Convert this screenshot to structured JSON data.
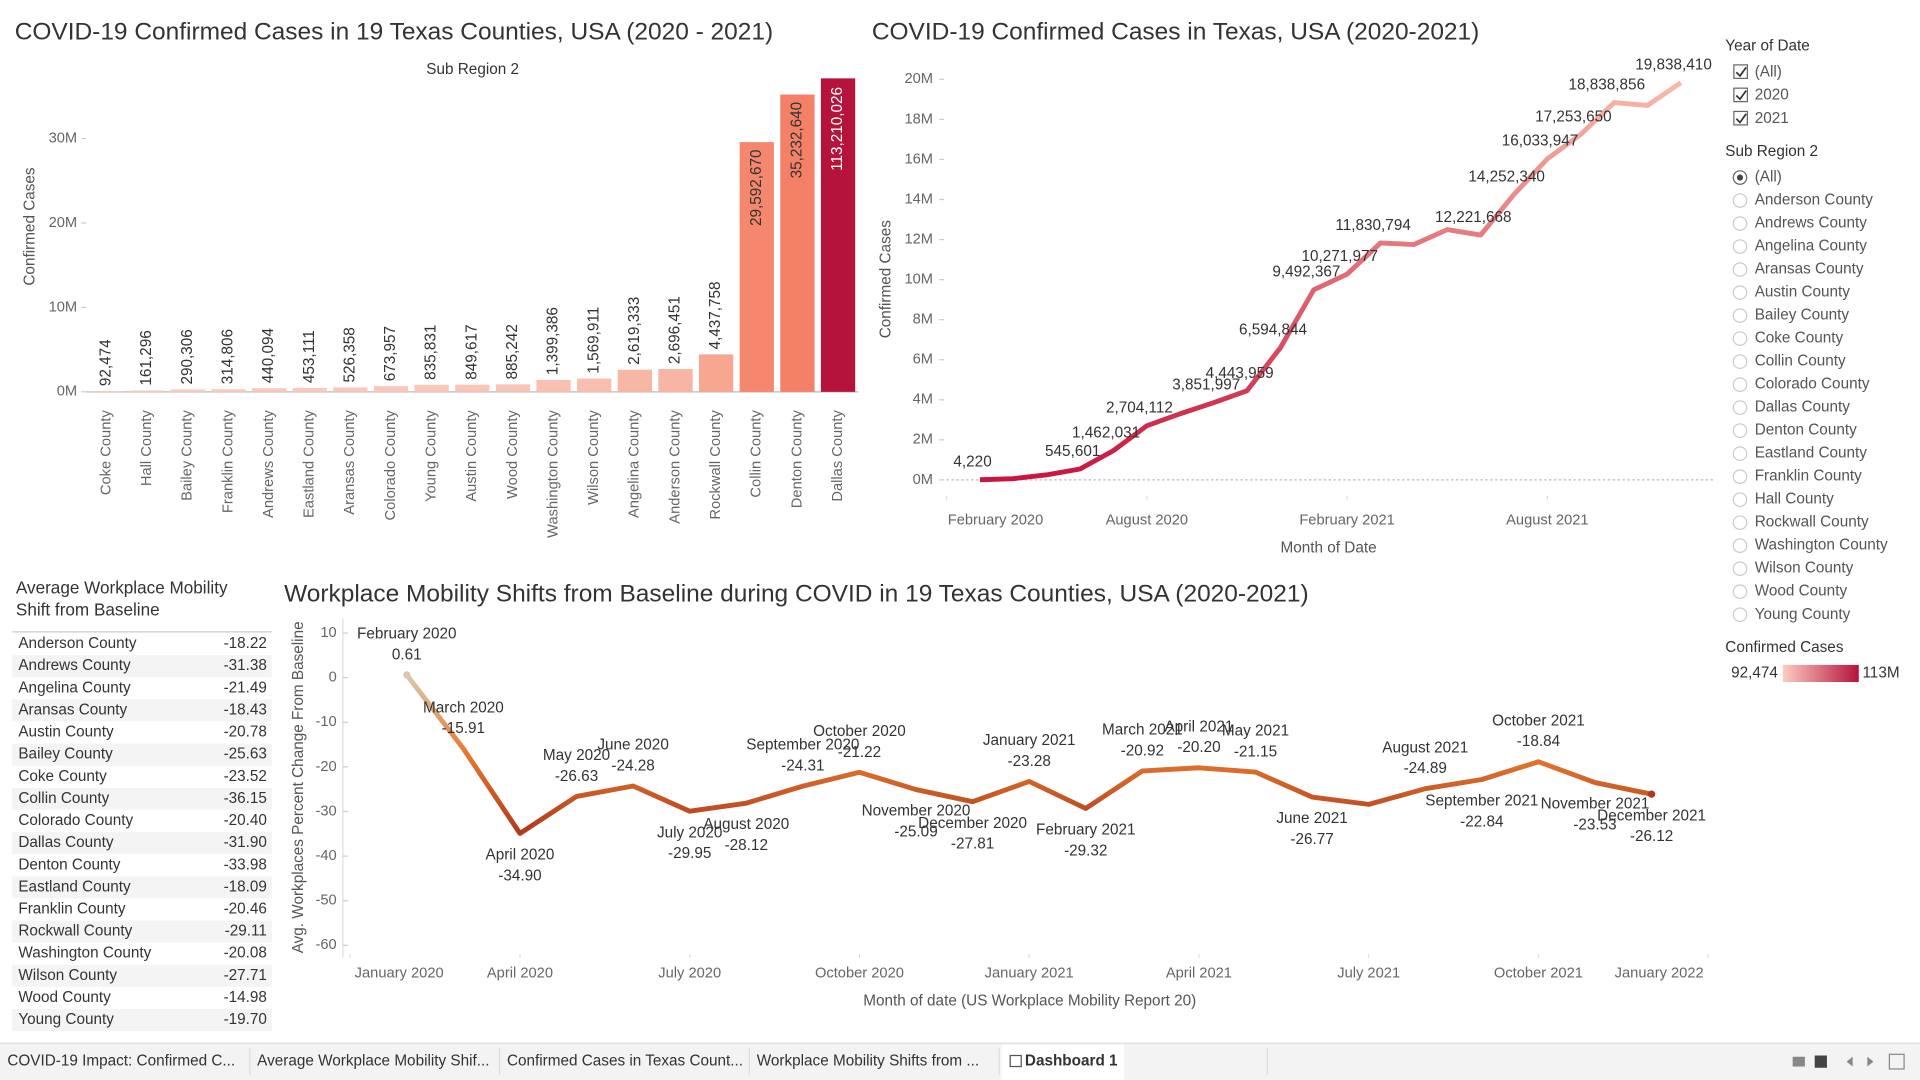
{
  "chart_data": [
    {
      "type": "bar",
      "title": "COVID-19 Confirmed Cases in 19 Texas Counties, USA (2020 - 2021)",
      "subtitle": "Sub Region 2",
      "y_label": "Confirmed Cases",
      "categories": [
        "Coke County",
        "Hall County",
        "Bailey County",
        "Franklin County",
        "Andrews County",
        "Eastland County",
        "Aransas County",
        "Colorado County",
        "Young County",
        "Austin County",
        "Wood County",
        "Washington County",
        "Wilson County",
        "Angelina County",
        "Anderson County",
        "Rockwall County",
        "Collin County",
        "Denton County",
        "Dallas County"
      ],
      "values": [
        92474,
        161296,
        290306,
        314806,
        440094,
        453111,
        526358,
        673957,
        835831,
        849617,
        885242,
        1399386,
        1569911,
        2619333,
        2696451,
        4437758,
        29592670,
        35232640,
        113210026
      ],
      "value_labels": [
        "92,474",
        "161,296",
        "290,306",
        "314,806",
        "440,094",
        "453,111",
        "526,358",
        "673,957",
        "835,831",
        "849,617",
        "885,242",
        "1,399,386",
        "1,569,911",
        "2,619,333",
        "2,696,451",
        "4,437,758",
        "29,592,670",
        "35,232,640",
        "113,210,026"
      ],
      "colors": [
        "#fbcdc1",
        "#fbcdc1",
        "#fbcbbf",
        "#fbcbbf",
        "#fac9bc",
        "#fac9bc",
        "#fac8bb",
        "#fac7ba",
        "#fac6b8",
        "#fac6b8",
        "#fac5b7",
        "#f9c0b1",
        "#f9beae",
        "#f8b6a4",
        "#f8b5a3",
        "#f7a78f",
        "#f4876d",
        "#f38067",
        "#b5123c"
      ],
      "ylim": [
        0,
        37000000
      ],
      "yticks": [
        {
          "value": 0,
          "label": "0M"
        },
        {
          "value": 10000000,
          "label": "10M"
        },
        {
          "value": 20000000,
          "label": "20M"
        },
        {
          "value": 30000000,
          "label": "30M"
        }
      ]
    },
    {
      "type": "line",
      "title": "COVID-19 Confirmed Cases in Texas, USA (2020-2021)",
      "x_label": "Month of Date",
      "y_label": "Confirmed Cases",
      "x": [
        "2020-03",
        "2020-04",
        "2020-05",
        "2020-06",
        "2020-07",
        "2020-08",
        "2020-09",
        "2020-10",
        "2020-11",
        "2020-12",
        "2021-01",
        "2021-02",
        "2021-03",
        "2021-04",
        "2021-05",
        "2021-06",
        "2021-07",
        "2021-08",
        "2021-09",
        "2021-10",
        "2021-11",
        "2021-12"
      ],
      "values": [
        4220,
        60000,
        250000,
        545601,
        1462031,
        2704112,
        3300000,
        3851997,
        4443959,
        6594844,
        9492367,
        10271977,
        11830794,
        11750000,
        12500000,
        12221668,
        14252340,
        16033947,
        17253650,
        18838856,
        18700000,
        19838410
      ],
      "value_labels": [
        "4,220",
        null,
        null,
        "545,601",
        "1,462,031",
        "2,704,112",
        null,
        "3,851,997",
        "4,443,959",
        "6,594,844",
        "9,492,367",
        "10,271,977",
        "11,830,794",
        null,
        null,
        "12,221,668",
        "14,252,340",
        "16,033,947",
        "17,253,650",
        "18,838,856",
        null,
        "19,838,410"
      ],
      "color_range": [
        "#f8b9aa",
        "#c7163f"
      ],
      "xlim": [
        "2020-02",
        "2022-01"
      ],
      "xticks": [
        {
          "value": "2020-02",
          "label": "February 2020"
        },
        {
          "value": "2020-08",
          "label": "August 2020"
        },
        {
          "value": "2021-02",
          "label": "February 2021"
        },
        {
          "value": "2021-08",
          "label": "August 2021"
        }
      ],
      "ylim": [
        -800000,
        20600000
      ],
      "yticks": [
        {
          "value": 0,
          "label": "0M"
        },
        {
          "value": 2000000,
          "label": "2M"
        },
        {
          "value": 4000000,
          "label": "4M"
        },
        {
          "value": 6000000,
          "label": "6M"
        },
        {
          "value": 8000000,
          "label": "8M"
        },
        {
          "value": 10000000,
          "label": "10M"
        },
        {
          "value": 12000000,
          "label": "12M"
        },
        {
          "value": 14000000,
          "label": "14M"
        },
        {
          "value": 16000000,
          "label": "16M"
        },
        {
          "value": 18000000,
          "label": "18M"
        },
        {
          "value": 20000000,
          "label": "20M"
        }
      ]
    },
    {
      "type": "line",
      "title": "Workplace Mobility Shifts from Baseline during COVID in 19 Texas Counties, USA (2020-2021)",
      "x_label": "Month of date (US Workplace Mobility Report 20)",
      "y_label": "Avg. Workplaces Percent Change From Baseline",
      "x": [
        "2020-02",
        "2020-03",
        "2020-04",
        "2020-05",
        "2020-06",
        "2020-07",
        "2020-08",
        "2020-09",
        "2020-10",
        "2020-11",
        "2020-12",
        "2021-01",
        "2021-02",
        "2021-03",
        "2021-04",
        "2021-05",
        "2021-06",
        "2021-07",
        "2021-08",
        "2021-09",
        "2021-10",
        "2021-11",
        "2021-12"
      ],
      "x_labels": [
        "February 2020",
        "March 2020",
        "April 2020",
        "May 2020",
        "June 2020",
        "July 2020",
        "August 2020",
        "September 2020",
        "October 2020",
        "November 2020",
        "December 2020",
        "January 2021",
        "February 2021",
        "March 2021",
        "April 2021",
        "May 2021",
        "June 2021",
        null,
        "August 2021",
        "September 2021",
        "October 2021",
        "November 2021",
        "December 2021"
      ],
      "values": [
        0.61,
        -15.91,
        -34.9,
        -26.63,
        -24.28,
        -29.95,
        -28.12,
        -24.31,
        -21.22,
        -25.09,
        -27.81,
        -23.28,
        -29.32,
        -20.92,
        -20.2,
        -21.15,
        -26.77,
        -28.4,
        -24.89,
        -22.84,
        -18.84,
        -23.53,
        -26.12
      ],
      "value_labels": [
        "0.61",
        "-15.91",
        "-34.90",
        "-26.63",
        "-24.28",
        "-29.95",
        "-28.12",
        "-24.31",
        "-21.22",
        "-25.09",
        "-27.81",
        "-23.28",
        "-29.32",
        "-20.92",
        "-20.20",
        "-21.15",
        "-26.77",
        null,
        "-24.89",
        "-22.84",
        "-18.84",
        "-23.53",
        "-26.12"
      ],
      "color_range": [
        "#d9c8ae",
        "#e57a30",
        "#b0391c"
      ],
      "xlim": [
        "2020-01",
        "2022-01"
      ],
      "xticks": [
        {
          "value": "2020-01",
          "label": "January 2020"
        },
        {
          "value": "2020-04",
          "label": "April 2020"
        },
        {
          "value": "2020-07",
          "label": "July 2020"
        },
        {
          "value": "2020-10",
          "label": "October 2020"
        },
        {
          "value": "2021-01",
          "label": "January 2021"
        },
        {
          "value": "2021-04",
          "label": "April 2021"
        },
        {
          "value": "2021-07",
          "label": "July 2021"
        },
        {
          "value": "2021-10",
          "label": "October 2021"
        },
        {
          "value": "2022-01",
          "label": "January 2022"
        }
      ],
      "ylim": [
        -62,
        12
      ],
      "yticks": [
        10,
        0,
        -10,
        -20,
        -30,
        -40,
        -50,
        -60
      ]
    }
  ],
  "table": {
    "title_lines": [
      "Average Workplace Mobility",
      "Shift from Baseline"
    ],
    "rows": [
      [
        "Anderson County",
        "-18.22"
      ],
      [
        "Andrews County",
        "-31.38"
      ],
      [
        "Angelina County",
        "-21.49"
      ],
      [
        "Aransas County",
        "-18.43"
      ],
      [
        "Austin County",
        "-20.78"
      ],
      [
        "Bailey County",
        "-25.63"
      ],
      [
        "Coke County",
        "-23.52"
      ],
      [
        "Collin County",
        "-36.15"
      ],
      [
        "Colorado County",
        "-20.40"
      ],
      [
        "Dallas County",
        "-31.90"
      ],
      [
        "Denton County",
        "-33.98"
      ],
      [
        "Eastland County",
        "-18.09"
      ],
      [
        "Franklin County",
        "-20.46"
      ],
      [
        "Rockwall County",
        "-29.11"
      ],
      [
        "Washington County",
        "-20.08"
      ],
      [
        "Wilson County",
        "-27.71"
      ],
      [
        "Wood County",
        "-14.98"
      ],
      [
        "Young County",
        "-19.70"
      ]
    ]
  },
  "filters": {
    "year": {
      "title": "Year of Date",
      "options": [
        "(All)",
        "2020",
        "2021"
      ]
    },
    "region": {
      "title": "Sub Region 2",
      "options": [
        "(All)",
        "Anderson County",
        "Andrews County",
        "Angelina County",
        "Aransas County",
        "Austin County",
        "Bailey County",
        "Coke County",
        "Collin County",
        "Colorado County",
        "Dallas County",
        "Denton County",
        "Eastland County",
        "Franklin County",
        "Hall County",
        "Rockwall County",
        "Washington County",
        "Wilson County",
        "Wood County",
        "Young County"
      ]
    },
    "legend": {
      "title": "Confirmed Cases",
      "min": "92,474",
      "max": "113M"
    }
  },
  "tabs": [
    "COVID-19 Impact: Confirmed C...",
    "Average Workplace Mobility Shif...",
    "Confirmed Cases in Texas Count...",
    "Workplace Mobility Shifts from ...",
    "Dashboard 1"
  ]
}
